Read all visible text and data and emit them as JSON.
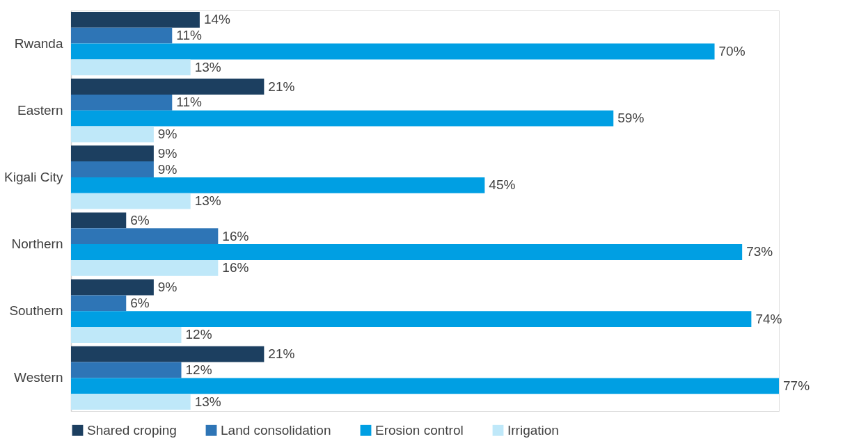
{
  "chart_data": {
    "type": "bar",
    "orientation": "horizontal",
    "legend": "bottom",
    "grid": false,
    "categories": [
      "Rwanda",
      "Eastern",
      "Kigali City",
      "Northern",
      "Southern",
      "Western"
    ],
    "series": [
      {
        "name": "Shared croping",
        "color": "#1c3f60",
        "values": [
          14,
          21,
          9,
          6,
          9,
          21
        ],
        "value_labels": [
          "14%",
          "21%",
          "9%",
          "6%",
          "9%",
          "21%"
        ]
      },
      {
        "name": "Land consolidation",
        "color": "#2e75b6",
        "values": [
          11,
          11,
          9,
          16,
          6,
          12
        ],
        "value_labels": [
          "11%",
          "11%",
          "9%",
          "16%",
          "6%",
          "12%"
        ]
      },
      {
        "name": "Erosion control",
        "color": "#009fe3",
        "values": [
          70,
          59,
          45,
          73,
          74,
          77
        ],
        "value_labels": [
          "70%",
          "59%",
          "45%",
          "73%",
          "74%",
          "77%"
        ]
      },
      {
        "name": "Irrigation",
        "color": "#bfe8f9",
        "values": [
          13,
          9,
          13,
          16,
          12,
          13
        ],
        "value_labels": [
          "13%",
          "9%",
          "13%",
          "16%",
          "12%",
          "13%"
        ]
      }
    ]
  }
}
